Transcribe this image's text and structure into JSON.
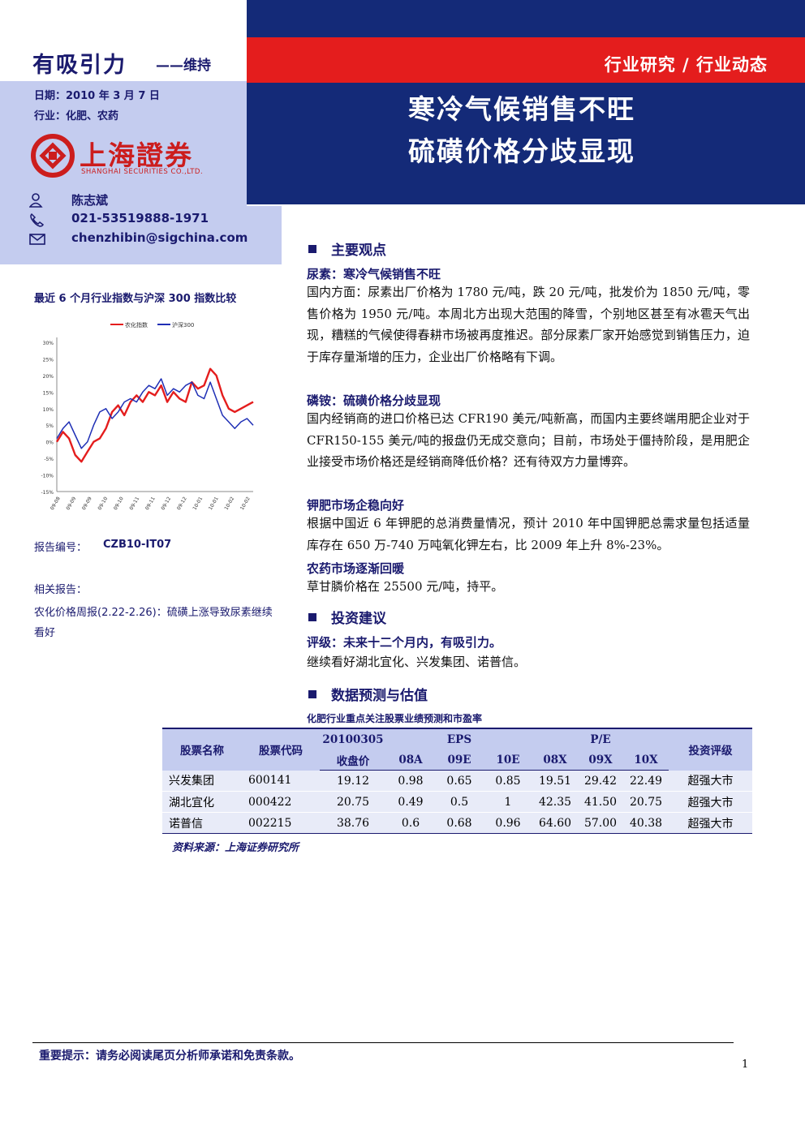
{
  "rating": {
    "label": "有吸引力",
    "sub": "——维持"
  },
  "meta": {
    "date": "日期：2010 年 3 月 7 日",
    "industry": "行业：化肥、农药"
  },
  "logo": {
    "cn": "上海證券",
    "en": "SHANGHAI SECURITIES CO.,LTD."
  },
  "analyst": {
    "name": "陈志斌",
    "phone": "021-53519888-1971",
    "email": "chenzhibin@sigchina.com"
  },
  "header": {
    "category": "行业研究 / 行业动态",
    "title_line1": "寒冷气候销售不旺",
    "title_line2": "硫磺价格分歧显现"
  },
  "colors": {
    "navy": "#142a78",
    "red": "#e41d1d",
    "panel": "#c4ccef",
    "series_industry": "#e41d1d",
    "series_hs300": "#1f2fb5"
  },
  "chart_title": "最近 6 个月行业指数与沪深 300 指数比较",
  "chart_data": {
    "type": "line",
    "title": "最近 6 个月行业指数与沪深 300 指数比较",
    "legend": [
      "农化指数",
      "沪深300"
    ],
    "legend_position": "top",
    "y_ticks": [
      "30%",
      "25%",
      "20%",
      "15%",
      "10%",
      "5%",
      "0%",
      "-5%",
      "-10%",
      "-15%"
    ],
    "x_ticks": [
      "09-08",
      "09-09",
      "09-09",
      "09-10",
      "09-10",
      "09-11",
      "09-11",
      "09-12",
      "09-12",
      "10-01",
      "10-01",
      "10-02",
      "10-02"
    ],
    "ylim": [
      -15,
      30
    ],
    "series": [
      {
        "name": "农化指数",
        "values": [
          0,
          3,
          1,
          -4,
          -6,
          -3,
          0,
          1,
          4,
          9,
          11,
          8,
          12,
          14,
          12,
          15,
          14,
          17,
          12,
          15,
          13,
          12,
          18,
          16,
          17,
          22,
          20,
          14,
          10,
          9,
          10,
          11,
          12
        ]
      },
      {
        "name": "沪深300",
        "values": [
          1,
          4,
          6,
          2,
          -2,
          0,
          5,
          9,
          10,
          7,
          9,
          12,
          13,
          12,
          15,
          17,
          16,
          19,
          14,
          16,
          15,
          17,
          18,
          14,
          13,
          18,
          13,
          8,
          6,
          4,
          6,
          7,
          5
        ]
      }
    ]
  },
  "report": {
    "no_label": "报告编号：",
    "no_value": "CZB10-IT07",
    "related_label": "相关报告：",
    "related_item": "农化价格周报(2.22-2.26)：硫磺上涨导致尿素继续看好"
  },
  "sections": {
    "s1": "主要观点",
    "urea_h": "尿素：寒冷气候销售不旺",
    "urea_p": "国内方面：尿素出厂价格为 1780 元/吨，跌 20 元/吨，批发价为 1850 元/吨，零售价格为 1950 元/吨。本周北方出现大范围的降雪，个别地区甚至有冰雹天气出现，糟糕的气候使得春耕市场被再度推迟。部分尿素厂家开始感觉到销售压力，迫于库存量渐增的压力，企业出厂价格略有下调。",
    "dap_h": "磷铵：硫磺价格分歧显现",
    "dap_p": "国内经销商的进口价格已达 CFR190 美元/吨新高，而国内主要终端用肥企业对于 CFR150-155 美元/吨的报盘仍无成交意向；目前，市场处于僵持阶段，是用肥企业接受市场价格还是经销商降低价格？还有待双方力量博弈。",
    "potash_h": "钾肥市场企稳向好",
    "potash_p": "根据中国近 6 年钾肥的总消费量情况，预计 2010 年中国钾肥总需求量包括适量库存在 650 万-740 万吨氧化钾左右，比 2009 年上升 8%-23%。",
    "pest_h": "农药市场逐渐回暖",
    "pest_p": "草甘膦价格在 25500 元/吨，持平。",
    "s2": "投资建议",
    "advice_h": "评级：未来十二个月内，有吸引力。",
    "advice_p": "继续看好湖北宜化、兴发集团、诺普信。",
    "s3": "数据预测与估值"
  },
  "table": {
    "caption": "化肥行业重点关注股票业绩预测和市盈率",
    "h_name": "股票名称",
    "h_code": "股票代码",
    "h_date": "20100305",
    "h_close": "收盘价",
    "h_eps": "EPS",
    "h_pe": "P/E",
    "h_rating": "投资评级",
    "h_08a": "08A",
    "h_09e": "09E",
    "h_10e": "10E",
    "h_08x": "08X",
    "h_09x": "09X",
    "h_10x": "10X",
    "rows": [
      {
        "name": "兴发集团",
        "code": "600141",
        "close": "19.12",
        "e08": "0.98",
        "e09": "0.65",
        "e10": "0.85",
        "p08": "19.51",
        "p09": "29.42",
        "p10": "22.49",
        "rating": "超强大市"
      },
      {
        "name": "湖北宜化",
        "code": "000422",
        "close": "20.75",
        "e08": "0.49",
        "e09": "0.5",
        "e10": "1",
        "p08": "42.35",
        "p09": "41.50",
        "p10": "20.75",
        "rating": "超强大市"
      },
      {
        "name": "诺普信",
        "code": "002215",
        "close": "38.76",
        "e08": "0.6",
        "e09": "0.68",
        "e10": "0.96",
        "p08": "64.60",
        "p09": "57.00",
        "p10": "40.38",
        "rating": "超强大市"
      }
    ],
    "source": "资料来源：上海证券研究所"
  },
  "footer": {
    "note": "重要提示：请务必阅读尾页分析师承诺和免责条款。",
    "page": "1"
  }
}
